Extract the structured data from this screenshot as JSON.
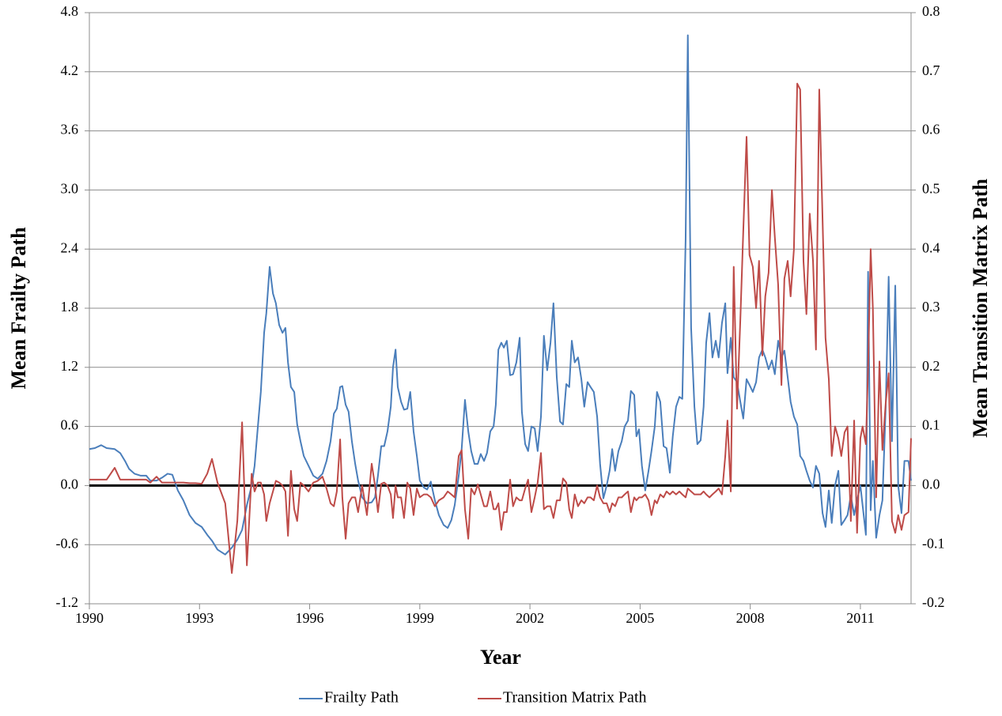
{
  "chart_data": {
    "type": "line",
    "xlabel": "Year",
    "ylabel": "Mean Frailty Path",
    "y2label": "Mean Transition Matrix Path",
    "xlim": [
      1990,
      2012.38
    ],
    "xticks": [
      1990,
      1993,
      1996,
      1999,
      2002,
      2005,
      2008,
      2011
    ],
    "ylim": [
      -1.2,
      4.8
    ],
    "yticks": [
      -1.2,
      -0.6,
      {
        "value": 0,
        "label": "0.0"
      },
      0.6,
      1.2,
      1.8,
      2.4,
      {
        "value": 3,
        "label": "3.0"
      },
      3.6,
      4.2,
      4.8
    ],
    "y2lim": [
      -0.2,
      0.8
    ],
    "y2ticks": [
      -0.2,
      -0.1,
      {
        "value": 0,
        "label": "0.0"
      },
      0.1,
      0.2,
      0.3,
      0.4,
      0.5,
      0.6,
      0.7,
      0.8
    ],
    "grid": true,
    "legend": "bottom",
    "x": [
      1990,
      1990.15,
      1990.32,
      1990.47,
      1990.69,
      1990.84,
      1990.97,
      1991.08,
      1991.23,
      1991.4,
      1991.55,
      1991.66,
      1991.83,
      1991.98,
      1992.13,
      1992.26,
      1992.41,
      1992.56,
      1992.73,
      1992.89,
      1993.06,
      1993.21,
      1993.34,
      1993.49,
      1993.7,
      1993.88,
      1994.03,
      1994.16,
      1994.29,
      1994.42,
      1994.5,
      1994.59,
      1994.67,
      1994.76,
      1994.82,
      1994.91,
      1995.0,
      1995.08,
      1995.17,
      1995.26,
      1995.34,
      1995.41,
      1995.49,
      1995.58,
      1995.66,
      1995.75,
      1995.84,
      1995.97,
      1996.1,
      1996.22,
      1996.35,
      1996.46,
      1996.57,
      1996.66,
      1996.74,
      1996.83,
      1996.89,
      1996.98,
      1997.06,
      1997.15,
      1997.24,
      1997.32,
      1997.43,
      1997.56,
      1997.69,
      1997.78,
      1997.86,
      1997.95,
      1998.03,
      1998.12,
      1998.21,
      1998.27,
      1998.34,
      1998.4,
      1998.49,
      1998.57,
      1998.66,
      1998.74,
      1998.83,
      1998.92,
      1999.0,
      1999.11,
      1999.2,
      1999.3,
      1999.41,
      1999.52,
      1999.65,
      1999.76,
      1999.86,
      1999.95,
      2000.06,
      2000.14,
      2000.23,
      2000.32,
      2000.4,
      2000.49,
      2000.58,
      2000.66,
      2000.75,
      2000.83,
      2000.92,
      2001.01,
      2001.07,
      2001.14,
      2001.22,
      2001.29,
      2001.37,
      2001.46,
      2001.54,
      2001.63,
      2001.72,
      2001.78,
      2001.87,
      2001.95,
      2002.04,
      2002.13,
      2002.21,
      2002.3,
      2002.38,
      2002.47,
      2002.56,
      2002.64,
      2002.73,
      2002.82,
      2002.9,
      2002.99,
      2003.07,
      2003.14,
      2003.22,
      2003.31,
      2003.4,
      2003.48,
      2003.57,
      2003.65,
      2003.74,
      2003.83,
      2003.91,
      2004.0,
      2004.09,
      2004.17,
      2004.24,
      2004.32,
      2004.41,
      2004.5,
      2004.58,
      2004.67,
      2004.75,
      2004.84,
      2004.9,
      2004.97,
      2005.05,
      2005.14,
      2005.23,
      2005.31,
      2005.4,
      2005.46,
      2005.55,
      2005.64,
      2005.72,
      2005.81,
      2005.89,
      2005.98,
      2006.07,
      2006.15,
      2006.24,
      2006.3,
      2006.39,
      2006.48,
      2006.56,
      2006.65,
      2006.73,
      2006.8,
      2006.89,
      2006.97,
      2007.06,
      2007.14,
      2007.23,
      2007.32,
      2007.38,
      2007.47,
      2007.55,
      2007.64,
      2007.73,
      2007.81,
      2007.9,
      2007.98,
      2008.07,
      2008.16,
      2008.24,
      2008.33,
      2008.41,
      2008.5,
      2008.59,
      2008.67,
      2008.76,
      2008.85,
      2008.93,
      2009.02,
      2009.1,
      2009.19,
      2009.28,
      2009.36,
      2009.45,
      2009.53,
      2009.62,
      2009.71,
      2009.79,
      2009.88,
      2009.97,
      2010.05,
      2010.14,
      2010.22,
      2010.31,
      2010.4,
      2010.48,
      2010.57,
      2010.65,
      2010.74,
      2010.83,
      2010.91,
      2011.0,
      2011.06,
      2011.15,
      2011.21,
      2011.28,
      2011.34,
      2011.43,
      2011.52,
      2011.6,
      2011.69,
      2011.77,
      2011.86,
      2011.95,
      2012.03,
      2012.12,
      2012.2,
      2012.31,
      2012.38
    ],
    "series": [
      {
        "name": "Frailty Path",
        "color": "#4a7ebb",
        "axis": "y",
        "values": [
          0.37,
          0.38,
          0.41,
          0.38,
          0.37,
          0.33,
          0.25,
          0.17,
          0.12,
          0.1,
          0.1,
          0.05,
          0.05,
          0.08,
          0.12,
          0.11,
          -0.05,
          -0.15,
          -0.3,
          -0.38,
          -0.42,
          -0.5,
          -0.56,
          -0.65,
          -0.7,
          -0.63,
          -0.55,
          -0.45,
          -0.2,
          0.0,
          0.2,
          0.6,
          0.95,
          1.55,
          1.75,
          2.22,
          1.95,
          1.85,
          1.63,
          1.55,
          1.6,
          1.25,
          1.0,
          0.95,
          0.62,
          0.45,
          0.3,
          0.2,
          0.1,
          0.07,
          0.12,
          0.25,
          0.45,
          0.73,
          0.78,
          1.0,
          1.01,
          0.82,
          0.75,
          0.45,
          0.22,
          0.05,
          -0.12,
          -0.18,
          -0.17,
          -0.12,
          0.1,
          0.4,
          0.4,
          0.55,
          0.8,
          1.2,
          1.38,
          1.0,
          0.85,
          0.77,
          0.78,
          0.95,
          0.55,
          0.3,
          0.05,
          -0.02,
          -0.04,
          0.04,
          -0.15,
          -0.3,
          -0.4,
          -0.43,
          -0.35,
          -0.2,
          0.1,
          0.37,
          0.87,
          0.55,
          0.35,
          0.22,
          0.22,
          0.32,
          0.25,
          0.33,
          0.55,
          0.6,
          0.82,
          1.38,
          1.45,
          1.4,
          1.47,
          1.12,
          1.13,
          1.25,
          1.5,
          0.75,
          0.42,
          0.35,
          0.6,
          0.58,
          0.35,
          0.7,
          1.52,
          1.17,
          1.45,
          1.85,
          1.1,
          0.65,
          0.62,
          1.03,
          1.0,
          1.47,
          1.25,
          1.3,
          1.08,
          0.8,
          1.05,
          1.0,
          0.95,
          0.7,
          0.22,
          -0.13,
          0.0,
          0.15,
          0.37,
          0.15,
          0.35,
          0.45,
          0.6,
          0.66,
          0.96,
          0.92,
          0.5,
          0.57,
          0.2,
          -0.05,
          0.15,
          0.35,
          0.6,
          0.95,
          0.85,
          0.4,
          0.38,
          0.13,
          0.5,
          0.8,
          0.9,
          0.88,
          2.5,
          4.57,
          1.6,
          0.8,
          0.42,
          0.46,
          0.8,
          1.45,
          1.75,
          1.3,
          1.47,
          1.3,
          1.65,
          1.85,
          1.14,
          1.5,
          1.1,
          1.05,
          0.85,
          0.68,
          1.08,
          1.02,
          0.95,
          1.05,
          1.3,
          1.38,
          1.3,
          1.18,
          1.27,
          1.13,
          1.47,
          1.3,
          1.37,
          1.1,
          0.85,
          0.7,
          0.62,
          0.3,
          0.25,
          0.15,
          0.05,
          -0.02,
          0.2,
          0.12,
          -0.28,
          -0.42,
          -0.05,
          -0.38,
          0.0,
          0.15,
          -0.4,
          -0.35,
          -0.3,
          -0.1,
          -0.3,
          -0.15,
          0.0,
          -0.2,
          -0.5,
          2.17,
          -0.25,
          0.25,
          -0.53,
          -0.3,
          -0.15,
          0.8,
          2.12,
          0.45,
          2.03,
          0.0,
          -0.28,
          0.25,
          0.25,
          0.05
        ]
      },
      {
        "name": "Transition Matrix Path",
        "color": "#be4b48",
        "axis": "y2",
        "values": [
          0.01,
          0.01,
          0.01,
          0.01,
          0.03,
          0.01,
          0.01,
          0.01,
          0.01,
          0.01,
          0.01,
          0.005,
          0.015,
          0.005,
          0.005,
          0.005,
          0.005,
          0.005,
          0.004,
          0.004,
          0.003,
          0.02,
          0.045,
          0.005,
          -0.03,
          -0.148,
          -0.06,
          0.107,
          -0.135,
          0.02,
          -0.01,
          0.005,
          0.005,
          -0.015,
          -0.06,
          -0.03,
          -0.01,
          0.008,
          0.005,
          0.0,
          -0.01,
          -0.085,
          0.025,
          -0.04,
          -0.06,
          0.005,
          0.0,
          -0.01,
          0.005,
          0.008,
          0.015,
          -0.005,
          -0.03,
          -0.035,
          -0.01,
          0.078,
          -0.02,
          -0.09,
          -0.03,
          -0.02,
          -0.02,
          -0.045,
          0.0,
          -0.05,
          0.037,
          0.0,
          -0.045,
          0.003,
          0.005,
          0.0,
          -0.015,
          -0.055,
          0.0,
          -0.02,
          -0.02,
          -0.055,
          0.005,
          -0.005,
          -0.05,
          -0.005,
          -0.02,
          -0.015,
          -0.015,
          -0.02,
          -0.035,
          -0.025,
          -0.02,
          -0.01,
          -0.015,
          -0.02,
          0.05,
          0.06,
          -0.04,
          -0.09,
          -0.005,
          -0.015,
          0.002,
          -0.015,
          -0.035,
          -0.035,
          -0.01,
          -0.04,
          -0.04,
          -0.03,
          -0.075,
          -0.045,
          -0.045,
          0.01,
          -0.035,
          -0.02,
          -0.025,
          -0.025,
          -0.005,
          0.01,
          -0.045,
          -0.02,
          0.005,
          0.055,
          -0.04,
          -0.035,
          -0.035,
          -0.055,
          -0.025,
          -0.025,
          0.012,
          0.005,
          -0.04,
          -0.055,
          -0.015,
          -0.035,
          -0.025,
          -0.03,
          -0.02,
          -0.02,
          -0.025,
          0.0,
          -0.02,
          -0.03,
          -0.03,
          -0.045,
          -0.03,
          -0.035,
          -0.02,
          -0.02,
          -0.015,
          -0.01,
          -0.045,
          -0.02,
          -0.025,
          -0.02,
          -0.02,
          -0.015,
          -0.025,
          -0.05,
          -0.025,
          -0.03,
          -0.015,
          -0.02,
          -0.01,
          -0.015,
          -0.01,
          -0.015,
          -0.01,
          -0.015,
          -0.02,
          -0.005,
          -0.01,
          -0.015,
          -0.015,
          -0.015,
          -0.01,
          -0.015,
          -0.02,
          -0.015,
          -0.01,
          -0.005,
          -0.015,
          0.05,
          0.11,
          -0.01,
          0.37,
          0.13,
          0.28,
          0.43,
          0.59,
          0.39,
          0.37,
          0.3,
          0.38,
          0.22,
          0.32,
          0.36,
          0.5,
          0.42,
          0.34,
          0.17,
          0.35,
          0.38,
          0.32,
          0.4,
          0.68,
          0.67,
          0.38,
          0.29,
          0.46,
          0.38,
          0.23,
          0.67,
          0.45,
          0.25,
          0.18,
          0.05,
          0.1,
          0.08,
          0.05,
          0.09,
          0.1,
          -0.06,
          0.11,
          -0.08,
          0.08,
          0.1,
          0.07,
          0.2,
          0.4,
          0.3,
          -0.02,
          0.21,
          0.06,
          0.14,
          0.19,
          -0.06,
          -0.08,
          -0.05,
          -0.075,
          -0.05,
          -0.045,
          0.08
        ]
      }
    ]
  }
}
